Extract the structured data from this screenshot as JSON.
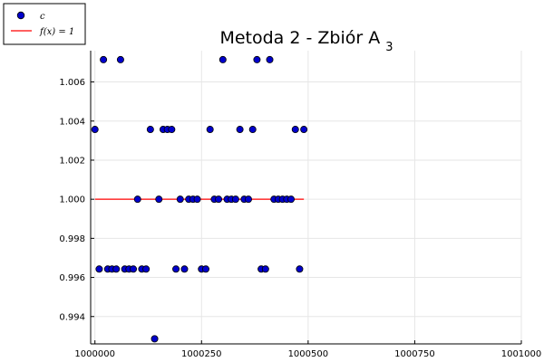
{
  "chart_data": {
    "type": "scatter",
    "title": "Metoda 2 - Zbiór A",
    "title_subscript": "3",
    "xlabel": "",
    "ylabel": "",
    "xlim": [
      999990,
      1001000
    ],
    "ylim": [
      0.9926,
      1.0076
    ],
    "xticks": [
      1000000,
      1000250,
      1000500,
      1000750,
      1001000
    ],
    "xtick_labels": [
      "1000000",
      "1000250",
      "1000500",
      "1000750",
      "1001000"
    ],
    "yticks": [
      0.994,
      0.996,
      0.998,
      1.0,
      1.002,
      1.004,
      1.006
    ],
    "ytick_labels": [
      "0.994",
      "0.996",
      "0.998",
      "1.000",
      "1.002",
      "1.004",
      "1.006"
    ],
    "grid": true,
    "legend_position": "top-left",
    "colors": {
      "points": "#0000cc",
      "point_edge": "#000000",
      "line": "#ff0000",
      "grid": "#e6e6e6"
    },
    "series": [
      {
        "name": "c",
        "kind": "scatter",
        "points": [
          [
            1000000,
            1.00357
          ],
          [
            1000010,
            0.99643
          ],
          [
            1000020,
            1.00714
          ],
          [
            1000030,
            0.99643
          ],
          [
            1000040,
            0.99643
          ],
          [
            1000050,
            0.99643
          ],
          [
            1000060,
            1.00714
          ],
          [
            1000070,
            0.99643
          ],
          [
            1000080,
            0.99643
          ],
          [
            1000090,
            0.99643
          ],
          [
            1000100,
            1.0
          ],
          [
            1000110,
            0.99643
          ],
          [
            1000120,
            0.99643
          ],
          [
            1000130,
            1.00357
          ],
          [
            1000140,
            0.99286
          ],
          [
            1000150,
            1.0
          ],
          [
            1000160,
            1.00357
          ],
          [
            1000170,
            1.00357
          ],
          [
            1000180,
            1.00357
          ],
          [
            1000190,
            0.99643
          ],
          [
            1000200,
            1.0
          ],
          [
            1000210,
            0.99643
          ],
          [
            1000220,
            1.0
          ],
          [
            1000230,
            1.0
          ],
          [
            1000240,
            1.0
          ],
          [
            1000250,
            0.99643
          ],
          [
            1000260,
            0.99643
          ],
          [
            1000270,
            1.00357
          ],
          [
            1000280,
            1.0
          ],
          [
            1000290,
            1.0
          ],
          [
            1000300,
            1.00714
          ],
          [
            1000310,
            1.0
          ],
          [
            1000320,
            1.0
          ],
          [
            1000330,
            1.0
          ],
          [
            1000340,
            1.00357
          ],
          [
            1000350,
            1.0
          ],
          [
            1000360,
            1.0
          ],
          [
            1000370,
            1.00357
          ],
          [
            1000380,
            1.00714
          ],
          [
            1000390,
            0.99643
          ],
          [
            1000400,
            0.99643
          ],
          [
            1000410,
            1.00714
          ],
          [
            1000420,
            1.0
          ],
          [
            1000430,
            1.0
          ],
          [
            1000440,
            1.0
          ],
          [
            1000450,
            1.0
          ],
          [
            1000460,
            1.0
          ],
          [
            1000470,
            1.00357
          ],
          [
            1000480,
            0.99643
          ],
          [
            1000490,
            1.00357
          ]
        ]
      },
      {
        "name": "f(x) = 1",
        "kind": "line",
        "points": [
          [
            1000000,
            1.0
          ],
          [
            1000490,
            1.0
          ]
        ]
      }
    ]
  }
}
